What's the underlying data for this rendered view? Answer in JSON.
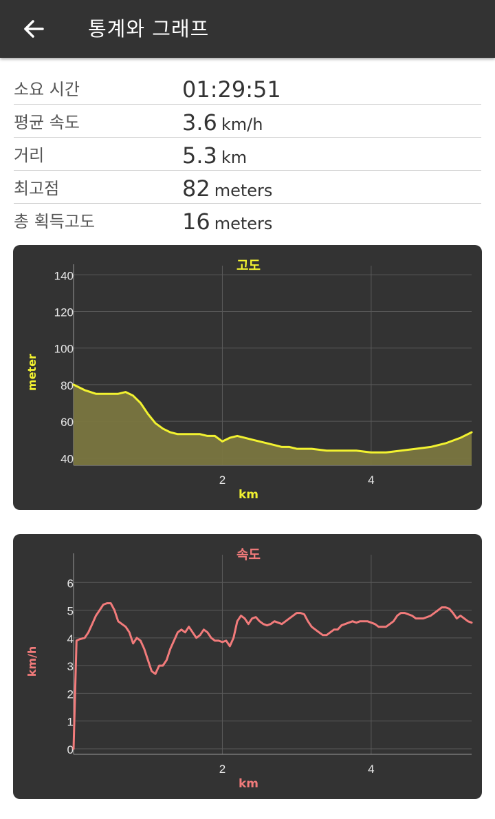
{
  "header": {
    "title": "통계와 그래프",
    "back_icon": "arrow-left-icon"
  },
  "stats": [
    {
      "label": "소요 시간",
      "value": "01:29:51",
      "unit": ""
    },
    {
      "label": "평균 속도",
      "value": "3.6",
      "unit": "km/h"
    },
    {
      "label": "거리",
      "value": "5.3",
      "unit": "km"
    },
    {
      "label": "최고점",
      "value": "82",
      "unit": "meters"
    },
    {
      "label": "총 획득고도",
      "value": "16",
      "unit": "meters"
    }
  ],
  "colors": {
    "elevation": "#f2f230",
    "elevation_fill": "#7a7640",
    "speed": "#f27b7b",
    "card_bg": "#333333",
    "grid": "#5a5a5a"
  },
  "chart_data": [
    {
      "type": "area",
      "title": "고도",
      "xlabel": "km",
      "ylabel": "meter",
      "xlim": [
        0,
        5.35
      ],
      "ylim": [
        36,
        145
      ],
      "xticks": [
        2,
        4
      ],
      "yticks": [
        40,
        60,
        80,
        100,
        120,
        140
      ],
      "grid": true,
      "x": [
        0,
        0.15,
        0.3,
        0.45,
        0.6,
        0.7,
        0.8,
        0.9,
        1.0,
        1.1,
        1.2,
        1.3,
        1.4,
        1.5,
        1.6,
        1.7,
        1.8,
        1.9,
        2.0,
        2.1,
        2.2,
        2.3,
        2.4,
        2.5,
        2.6,
        2.7,
        2.8,
        2.9,
        3.0,
        3.2,
        3.4,
        3.6,
        3.8,
        4.0,
        4.2,
        4.4,
        4.6,
        4.8,
        5.0,
        5.2,
        5.35
      ],
      "series": [
        {
          "values": [
            80,
            77,
            75,
            75,
            75,
            76,
            74,
            70,
            64,
            59,
            56,
            54,
            53,
            53,
            53,
            53,
            52,
            52,
            49,
            51,
            52,
            51,
            50,
            49,
            48,
            47,
            46,
            46,
            45,
            45,
            44,
            44,
            44,
            43,
            43,
            44,
            45,
            46,
            48,
            51,
            54
          ]
        }
      ]
    },
    {
      "type": "line",
      "title": "속도",
      "xlabel": "km",
      "ylabel": "km/h",
      "xlim": [
        0,
        5.35
      ],
      "ylim": [
        -0.2,
        7.0
      ],
      "xticks": [
        2,
        4
      ],
      "yticks": [
        0,
        1,
        2,
        3,
        4,
        5,
        6
      ],
      "grid": true,
      "x": [
        0,
        0.04,
        0.08,
        0.15,
        0.2,
        0.25,
        0.3,
        0.35,
        0.4,
        0.45,
        0.5,
        0.55,
        0.6,
        0.65,
        0.7,
        0.75,
        0.8,
        0.85,
        0.9,
        0.95,
        1.0,
        1.05,
        1.1,
        1.15,
        1.2,
        1.25,
        1.3,
        1.35,
        1.4,
        1.45,
        1.5,
        1.55,
        1.6,
        1.65,
        1.7,
        1.75,
        1.8,
        1.85,
        1.9,
        1.95,
        2.0,
        2.05,
        2.1,
        2.15,
        2.2,
        2.25,
        2.3,
        2.35,
        2.4,
        2.45,
        2.5,
        2.55,
        2.6,
        2.65,
        2.7,
        2.75,
        2.8,
        2.85,
        2.9,
        2.95,
        3.0,
        3.05,
        3.1,
        3.15,
        3.2,
        3.25,
        3.3,
        3.35,
        3.4,
        3.45,
        3.5,
        3.55,
        3.6,
        3.65,
        3.7,
        3.75,
        3.8,
        3.85,
        3.9,
        3.95,
        4.0,
        4.05,
        4.1,
        4.15,
        4.2,
        4.25,
        4.3,
        4.35,
        4.4,
        4.45,
        4.5,
        4.55,
        4.6,
        4.65,
        4.7,
        4.75,
        4.8,
        4.85,
        4.9,
        4.95,
        5.0,
        5.05,
        5.1,
        5.15,
        5.2,
        5.25,
        5.3,
        5.35
      ],
      "series": [
        {
          "values": [
            0,
            3.9,
            3.95,
            4.0,
            4.2,
            4.5,
            4.8,
            5.0,
            5.2,
            5.25,
            5.25,
            5.0,
            4.6,
            4.5,
            4.4,
            4.2,
            3.8,
            4.0,
            3.9,
            3.6,
            3.2,
            2.8,
            2.7,
            3.0,
            3.0,
            3.2,
            3.6,
            3.9,
            4.2,
            4.3,
            4.2,
            4.4,
            4.2,
            4.0,
            4.1,
            4.3,
            4.2,
            4.0,
            3.9,
            3.9,
            3.85,
            3.9,
            3.7,
            4.0,
            4.6,
            4.8,
            4.7,
            4.5,
            4.7,
            4.75,
            4.6,
            4.5,
            4.45,
            4.5,
            4.6,
            4.55,
            4.5,
            4.6,
            4.7,
            4.8,
            4.9,
            4.9,
            4.85,
            4.6,
            4.4,
            4.3,
            4.2,
            4.1,
            4.1,
            4.2,
            4.3,
            4.3,
            4.45,
            4.5,
            4.55,
            4.6,
            4.55,
            4.6,
            4.6,
            4.6,
            4.55,
            4.5,
            4.4,
            4.4,
            4.4,
            4.5,
            4.6,
            4.8,
            4.9,
            4.9,
            4.85,
            4.8,
            4.7,
            4.7,
            4.7,
            4.75,
            4.8,
            4.9,
            5.0,
            5.1,
            5.1,
            5.05,
            4.9,
            4.7,
            4.8,
            4.7,
            4.6,
            4.55
          ]
        }
      ]
    }
  ]
}
